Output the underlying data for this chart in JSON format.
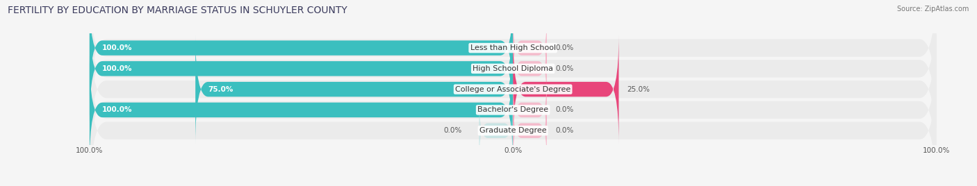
{
  "title": "FERTILITY BY EDUCATION BY MARRIAGE STATUS IN SCHUYLER COUNTY",
  "source": "Source: ZipAtlas.com",
  "categories": [
    "Less than High School",
    "High School Diploma",
    "College or Associate's Degree",
    "Bachelor's Degree",
    "Graduate Degree"
  ],
  "married": [
    100.0,
    100.0,
    75.0,
    100.0,
    0.0
  ],
  "unmarried": [
    0.0,
    0.0,
    25.0,
    0.0,
    0.0
  ],
  "married_color": "#3bbfbf",
  "unmarried_color_strong": "#e8457a",
  "unmarried_color_light": "#f9a8c0",
  "married_color_light": "#a8dede",
  "bar_bg_color": "#e0e0e0",
  "row_bg_color": "#ebebeb",
  "background_color": "#f5f5f5",
  "title_fontsize": 10,
  "label_fontsize": 8.0,
  "value_fontsize": 7.5,
  "axis_label_fontsize": 7.5,
  "legend_fontsize": 8.5
}
